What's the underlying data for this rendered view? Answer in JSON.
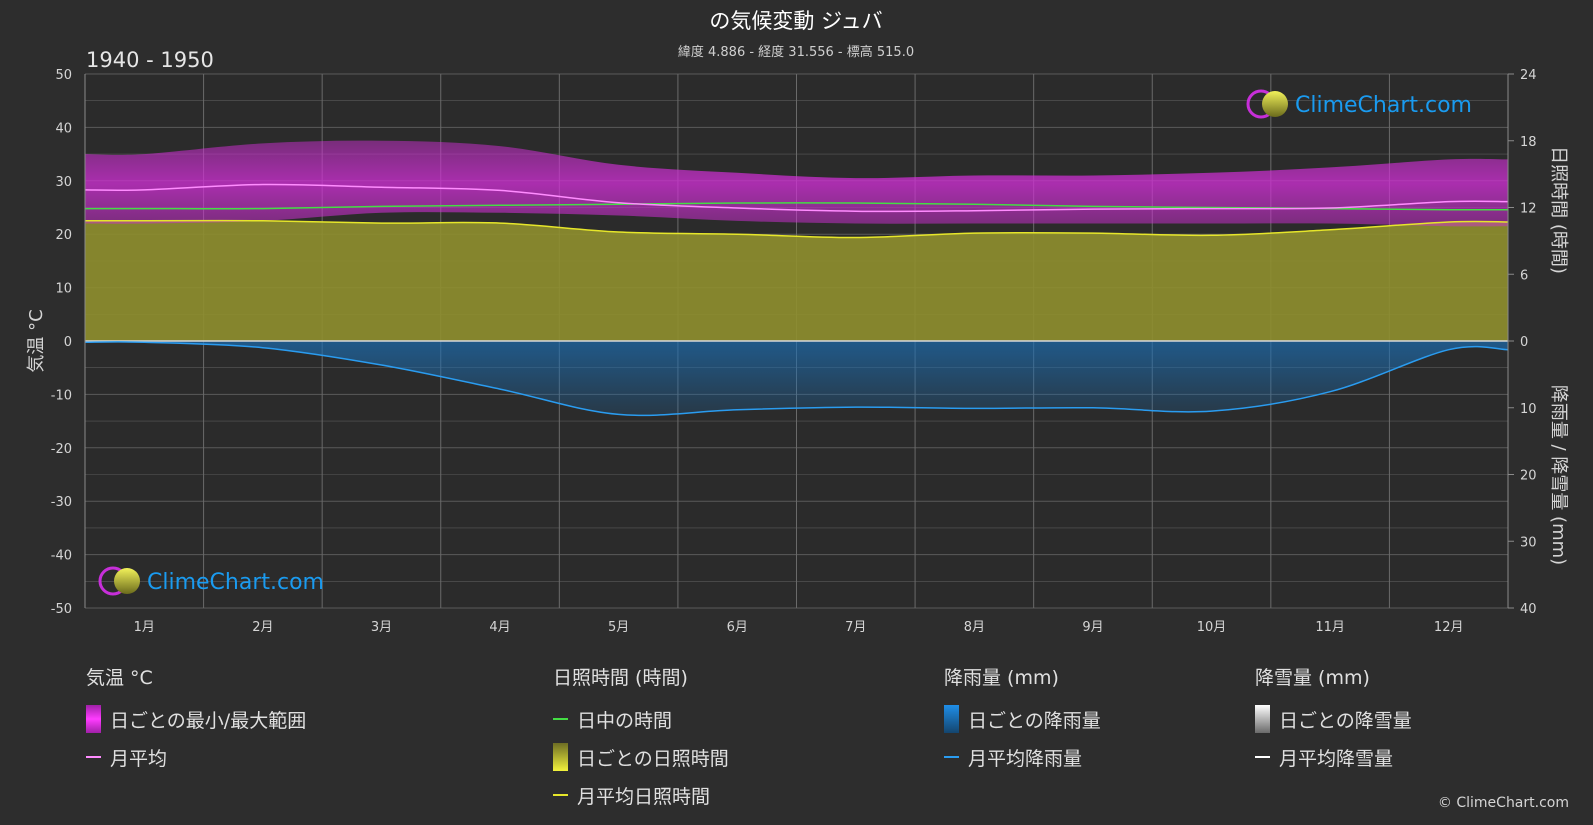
{
  "header": {
    "title": "の気候変動 ジュバ",
    "subtitle": "緯度 4.886 - 経度 31.556 - 標高 515.0",
    "period": "1940 - 1950"
  },
  "logo": {
    "text": "ClimeChart.com"
  },
  "copyright": "© ClimeChart.com",
  "colors": {
    "background": "#2d2d2d",
    "temp_range": "#d12fd6",
    "temp_mean": "#ff8cff",
    "daylight": "#44dd44",
    "sunshine_fill": "#8f8f2e",
    "sunshine_mean": "#e6e62a",
    "rain": "#1b6fb5",
    "rain_mean": "#2a9cf0",
    "snow_mean": "#ffffff"
  },
  "chart_data": {
    "type": "area",
    "x_categories": [
      "1月",
      "2月",
      "3月",
      "4月",
      "5月",
      "6月",
      "7月",
      "8月",
      "9月",
      "10月",
      "11月",
      "12月"
    ],
    "left_axis": {
      "label": "気温 °C",
      "min": -50,
      "max": 50,
      "ticks": [
        "50",
        "40",
        "30",
        "20",
        "10",
        "0",
        "-10",
        "-20",
        "-30",
        "-40",
        "-50"
      ]
    },
    "right_axis_top": {
      "label": "日照時間 (時間)",
      "min": 0,
      "max": 24,
      "ticks": [
        "24",
        "18",
        "12",
        "6",
        "0"
      ]
    },
    "right_axis_bottom": {
      "label": "降雨量 / 降雪量 (mm)",
      "min": 0,
      "max": 40,
      "ticks": [
        "0",
        "10",
        "20",
        "30",
        "40"
      ]
    },
    "grid": true,
    "series": [
      {
        "name": "日ごとの最小/最大範囲",
        "kind": "band",
        "unit": "°C",
        "low": [
          22,
          22.5,
          24,
          24,
          23.5,
          22.5,
          22,
          22,
          22,
          22,
          22,
          21.5
        ],
        "high": [
          35,
          37,
          37.5,
          36.5,
          33,
          31.5,
          30.5,
          31,
          31,
          31.5,
          32.5,
          34
        ]
      },
      {
        "name": "月平均",
        "kind": "line",
        "unit": "°C",
        "values": [
          28.3,
          29.3,
          28.8,
          28.2,
          25.9,
          24.9,
          24.3,
          24.4,
          24.7,
          24.8,
          24.9,
          26.1
        ]
      },
      {
        "name": "日中の時間",
        "kind": "line",
        "unit": "時間",
        "values": [
          11.9,
          11.9,
          12.1,
          12.2,
          12.3,
          12.4,
          12.4,
          12.3,
          12.1,
          12.0,
          11.9,
          11.8
        ]
      },
      {
        "name": "日ごとの日照時間",
        "kind": "area",
        "unit": "時間",
        "values": [
          10.8,
          10.8,
          10.6,
          10.6,
          9.8,
          9.6,
          9.3,
          9.7,
          9.7,
          9.5,
          10.0,
          10.7
        ]
      },
      {
        "name": "月平均日照時間",
        "kind": "line",
        "unit": "時間",
        "values": [
          10.8,
          10.8,
          10.6,
          10.6,
          9.8,
          9.6,
          9.3,
          9.7,
          9.7,
          9.5,
          10.0,
          10.7
        ]
      },
      {
        "name": "日ごとの降雨量",
        "kind": "area",
        "unit": "mm",
        "values": [
          0.2,
          1.0,
          3.6,
          7.2,
          11.0,
          10.3,
          9.9,
          10.1,
          10.0,
          10.5,
          7.6,
          1.3
        ]
      },
      {
        "name": "月平均降雨量",
        "kind": "line",
        "unit": "mm",
        "values": [
          0.2,
          1.0,
          3.6,
          7.2,
          11.0,
          10.3,
          9.9,
          10.1,
          10.0,
          10.5,
          7.6,
          1.3
        ]
      },
      {
        "name": "日ごとの降雪量",
        "kind": "area",
        "unit": "mm",
        "values": [
          0,
          0,
          0,
          0,
          0,
          0,
          0,
          0,
          0,
          0,
          0,
          0
        ]
      },
      {
        "name": "月平均降雪量",
        "kind": "line",
        "unit": "mm",
        "values": [
          0,
          0,
          0,
          0,
          0,
          0,
          0,
          0,
          0,
          0,
          0,
          0
        ]
      }
    ]
  },
  "legend": {
    "groups": [
      {
        "heading": "気温 °C",
        "items": [
          {
            "label": "日ごとの最小/最大範囲"
          },
          {
            "label": "月平均"
          }
        ]
      },
      {
        "heading": "日照時間 (時間)",
        "items": [
          {
            "label": "日中の時間"
          },
          {
            "label": "日ごとの日照時間"
          },
          {
            "label": "月平均日照時間"
          }
        ]
      },
      {
        "heading": "降雨量 (mm)",
        "items": [
          {
            "label": "日ごとの降雨量"
          },
          {
            "label": "月平均降雨量"
          }
        ]
      },
      {
        "heading": "降雪量 (mm)",
        "items": [
          {
            "label": "日ごとの降雪量"
          },
          {
            "label": "月平均降雪量"
          }
        ]
      }
    ]
  }
}
